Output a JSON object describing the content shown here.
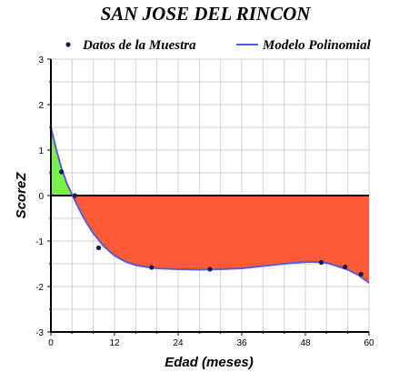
{
  "chart_data": {
    "type": "line",
    "title": "SAN JOSE DEL RINCON",
    "xlabel": "Edad (meses)",
    "ylabel": "ScoreZ",
    "xlim": [
      0,
      60
    ],
    "ylim": [
      -3,
      3
    ],
    "x_ticks": [
      0,
      12,
      24,
      36,
      48,
      60
    ],
    "y_ticks": [
      -3,
      -2,
      -1,
      0,
      1,
      2,
      3
    ],
    "grid": true,
    "legend_position": "top",
    "series": [
      {
        "name": "Datos de la Muestra",
        "kind": "scatter",
        "color": "#1a1a4e",
        "x": [
          2,
          4.5,
          9,
          19,
          30,
          51,
          55.5,
          58.5
        ],
        "y": [
          0.52,
          0.0,
          -1.15,
          -1.58,
          -1.62,
          -1.47,
          -1.57,
          -1.73
        ]
      },
      {
        "name": "Modelo Polinomial",
        "kind": "line",
        "color": "#5b5bd6",
        "x": [
          0,
          1,
          2,
          3,
          4,
          5,
          6,
          7,
          8,
          10,
          12,
          14,
          16,
          18,
          20,
          24,
          28,
          32,
          36,
          40,
          44,
          48,
          50,
          52,
          54,
          56,
          58,
          60
        ],
        "y": [
          1.5,
          1.02,
          0.6,
          0.27,
          0.02,
          -0.22,
          -0.45,
          -0.65,
          -0.83,
          -1.12,
          -1.32,
          -1.45,
          -1.53,
          -1.57,
          -1.6,
          -1.62,
          -1.63,
          -1.62,
          -1.6,
          -1.55,
          -1.5,
          -1.46,
          -1.46,
          -1.48,
          -1.55,
          -1.63,
          -1.75,
          -1.92
        ]
      }
    ],
    "fill_colors": {
      "above_zero": "#7cf04a",
      "below_zero": "#ff5a36"
    },
    "zero_line_color": "#000000"
  }
}
